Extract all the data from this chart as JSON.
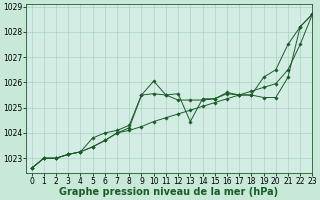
{
  "title": "Graphe pression niveau de la mer (hPa)",
  "background_color": "#c8e8d8",
  "plot_bg_color": "#d4ede4",
  "grid_color": "#a0ccb8",
  "line_color": "#1a5c28",
  "xlim": [
    -0.5,
    23
  ],
  "ylim": [
    1022.4,
    1029.1
  ],
  "yticks": [
    1023,
    1024,
    1025,
    1026,
    1027,
    1028,
    1029
  ],
  "xticks": [
    0,
    1,
    2,
    3,
    4,
    5,
    6,
    7,
    8,
    9,
    10,
    11,
    12,
    13,
    14,
    15,
    16,
    17,
    18,
    19,
    20,
    21,
    22,
    23
  ],
  "series1": [
    1022.6,
    1023.0,
    1023.0,
    1023.15,
    1023.25,
    1023.45,
    1023.7,
    1024.0,
    1024.2,
    1025.5,
    1025.55,
    1025.5,
    1025.3,
    1025.3,
    1025.3,
    1025.35,
    1025.55,
    1025.5,
    1025.5,
    1026.2,
    1026.5,
    1027.5,
    1028.2,
    1028.7
  ],
  "series2": [
    1022.6,
    1023.0,
    1023.0,
    1023.15,
    1023.25,
    1023.8,
    1024.0,
    1024.1,
    1024.3,
    1025.5,
    1026.05,
    1025.5,
    1025.55,
    1024.45,
    1025.35,
    1025.35,
    1025.6,
    1025.5,
    1025.5,
    1025.4,
    1025.4,
    1026.2,
    1028.2,
    1028.7
  ],
  "series3": [
    1022.6,
    1023.0,
    1023.0,
    1023.15,
    1023.25,
    1023.45,
    1023.7,
    1024.0,
    1024.1,
    1024.25,
    1024.45,
    1024.6,
    1024.75,
    1024.9,
    1025.05,
    1025.2,
    1025.35,
    1025.5,
    1025.65,
    1025.8,
    1025.95,
    1026.5,
    1027.5,
    1028.7
  ],
  "tick_fontsize": 5.5,
  "xlabel_fontsize": 7.0
}
